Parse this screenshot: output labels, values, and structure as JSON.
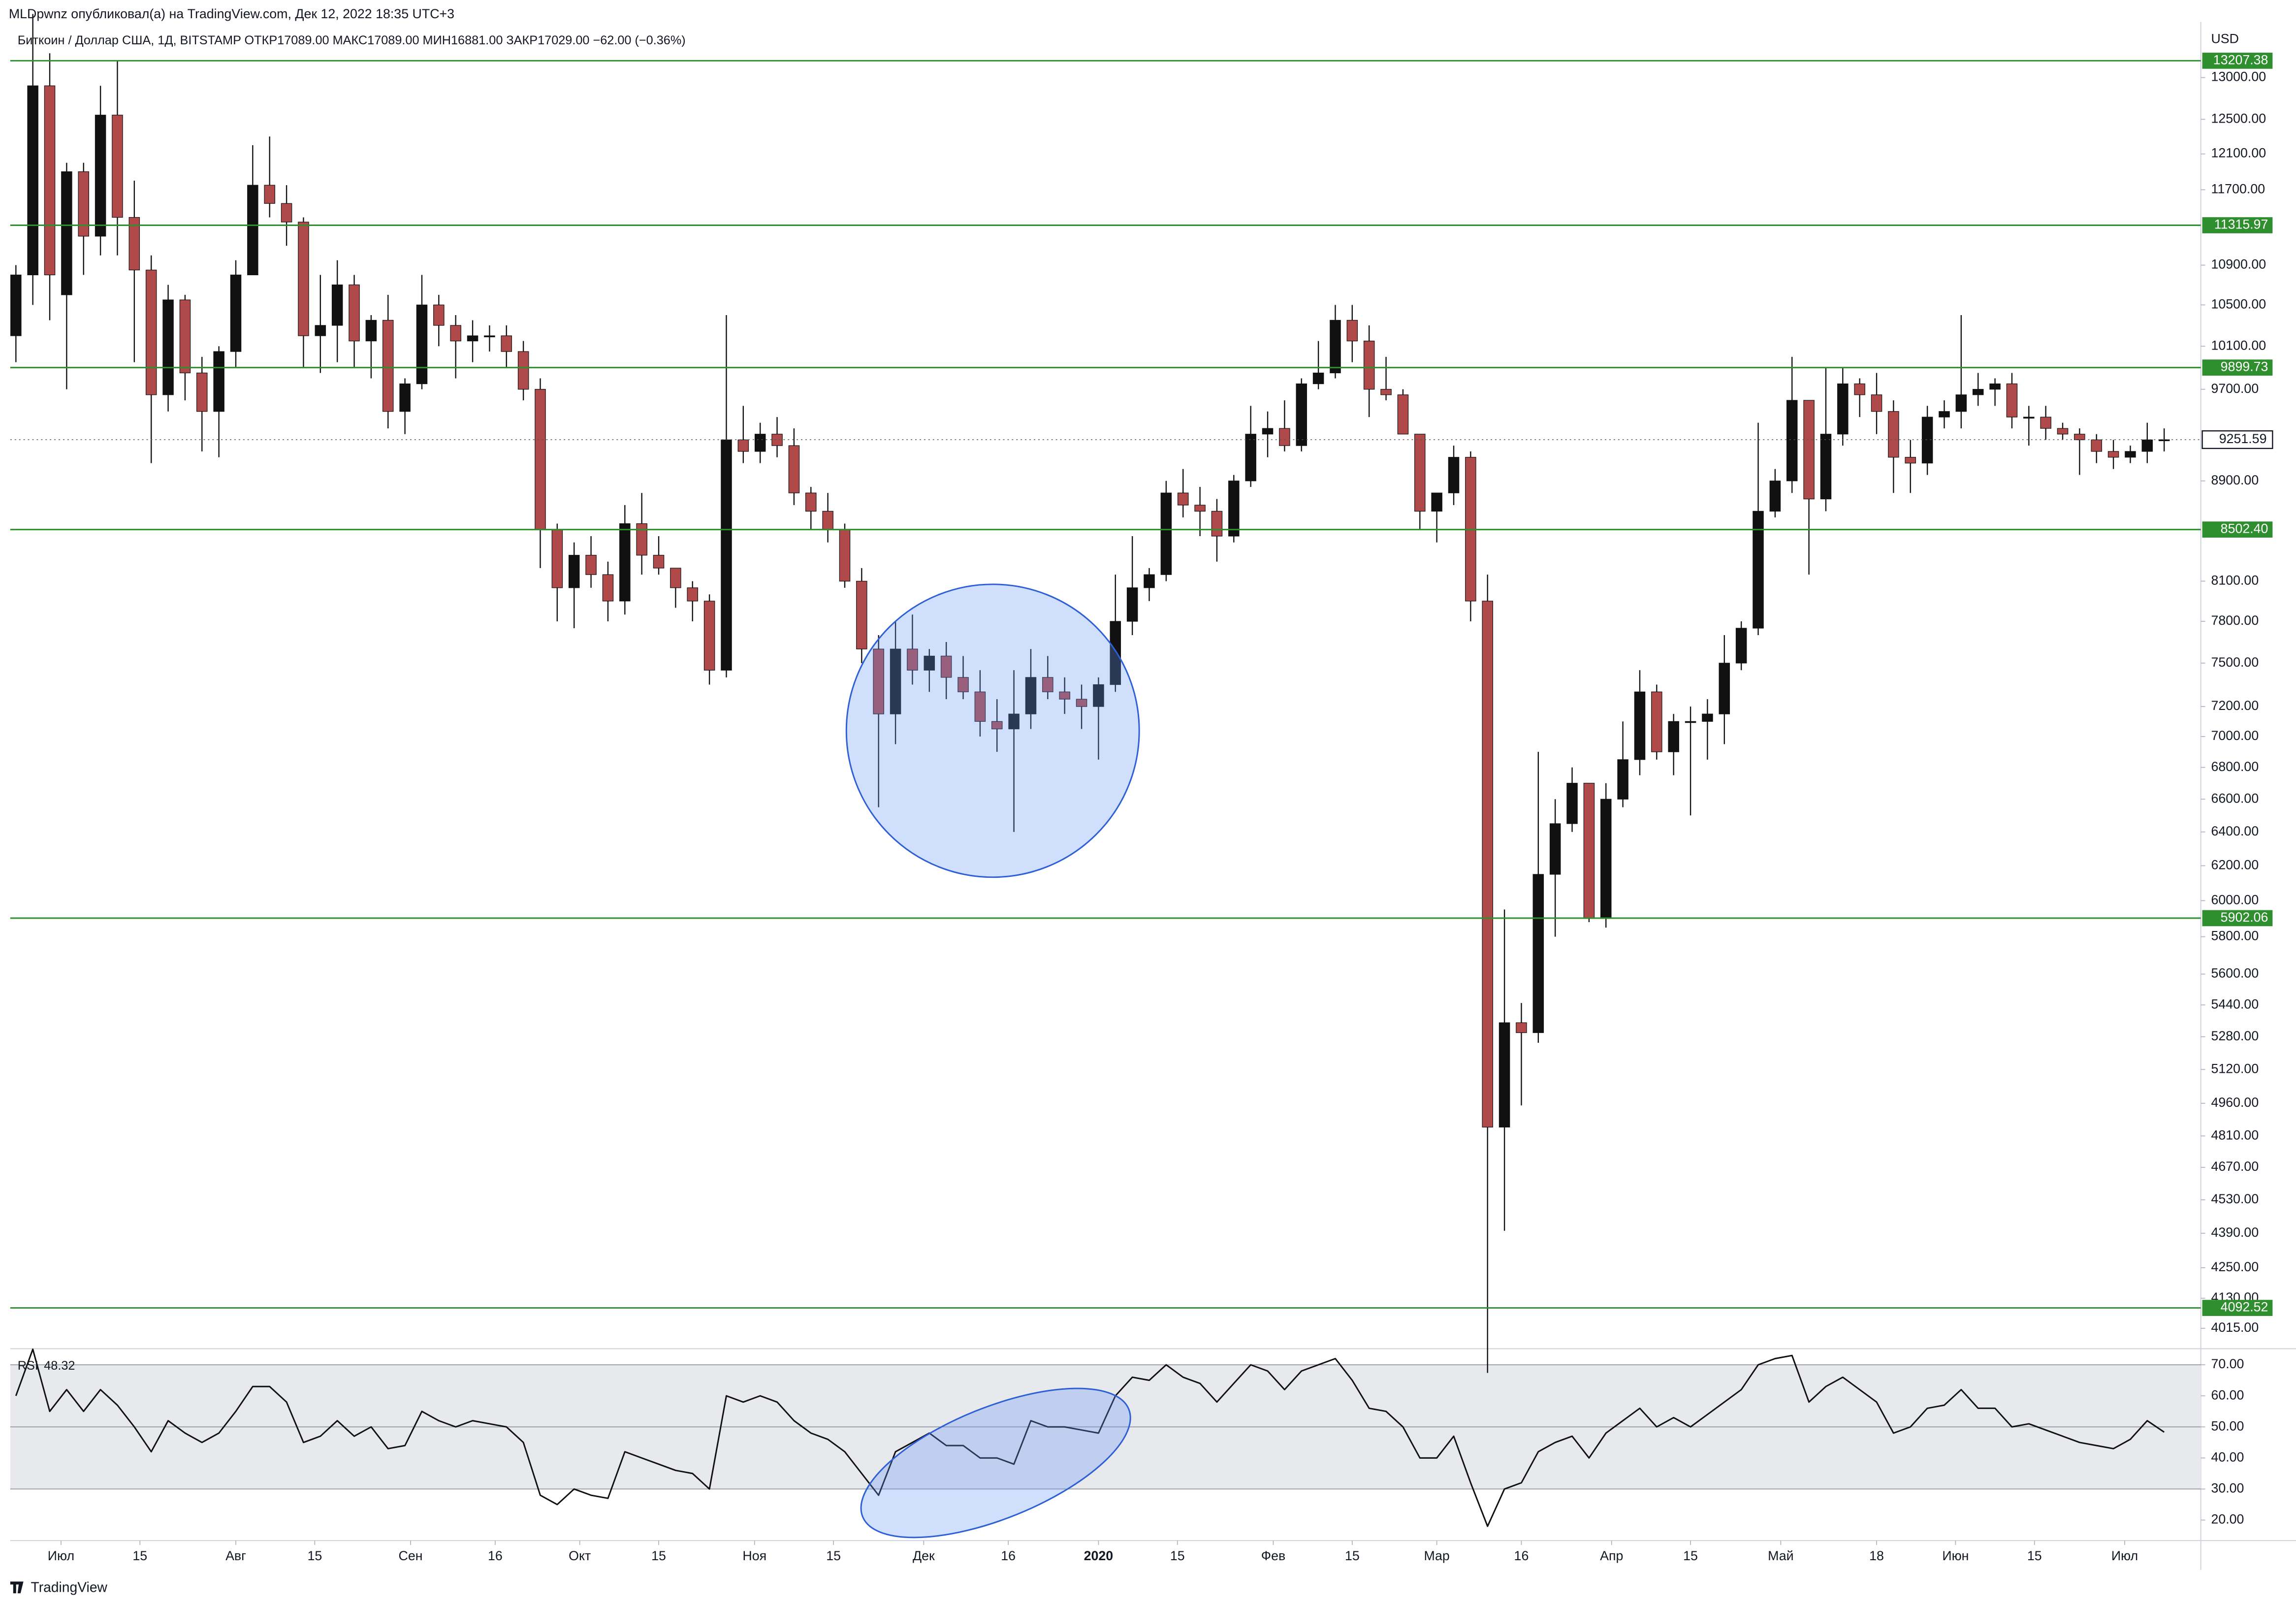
{
  "header": {
    "published": "MLDpwnz опубликовал(а) на TradingView.com, Дек 12, 2022 18:35 UTC+3",
    "symbol": "Биткоин / Доллар США, 1Д, BITSTAMP  ОТКР17089.00  МАКС17089.00  МИН16881.00  ЗАКР17029.00  −62.00 (−0.36%)"
  },
  "footer": {
    "brand": "TradingView"
  },
  "chart_data": [
    {
      "type": "candlestick",
      "y_unit": "USD",
      "log_scale": true,
      "up_color": "#111111",
      "down_color": "#b04a4a",
      "xlim": [
        -9,
        379.5
      ],
      "ylim": [
        3944,
        13697
      ],
      "yticks": [
        {
          "value": 13000,
          "label": "13000.00"
        },
        {
          "value": 12500,
          "label": "12500.00"
        },
        {
          "value": 12100,
          "label": "12100.00"
        },
        {
          "value": 11700,
          "label": "11700.00"
        },
        {
          "value": 10900,
          "label": "10900.00"
        },
        {
          "value": 10500,
          "label": "10500.00"
        },
        {
          "value": 10100,
          "label": "10100.00"
        },
        {
          "value": 9700,
          "label": "9700.00"
        },
        {
          "value": 8900,
          "label": "8900.00"
        },
        {
          "value": 8100,
          "label": "8100.00"
        },
        {
          "value": 7800,
          "label": "7800.00"
        },
        {
          "value": 7500,
          "label": "7500.00"
        },
        {
          "value": 7200,
          "label": "7200.00"
        },
        {
          "value": 7000,
          "label": "7000.00"
        },
        {
          "value": 6800,
          "label": "6800.00"
        },
        {
          "value": 6600,
          "label": "6600.00"
        },
        {
          "value": 6400,
          "label": "6400.00"
        },
        {
          "value": 6200,
          "label": "6200.00"
        },
        {
          "value": 6000,
          "label": "6000.00"
        },
        {
          "value": 5800,
          "label": "5800.00"
        },
        {
          "value": 5600,
          "label": "5600.00"
        },
        {
          "value": 5440,
          "label": "5440.00"
        },
        {
          "value": 5280,
          "label": "5280.00"
        },
        {
          "value": 5120,
          "label": "5120.00"
        },
        {
          "value": 4960,
          "label": "4960.00"
        },
        {
          "value": 4810,
          "label": "4810.00"
        },
        {
          "value": 4670,
          "label": "4670.00"
        },
        {
          "value": 4530,
          "label": "4530.00"
        },
        {
          "value": 4390,
          "label": "4390.00"
        },
        {
          "value": 4250,
          "label": "4250.00"
        },
        {
          "value": 4130,
          "label": "4130.00"
        },
        {
          "value": 4015,
          "label": "4015.00"
        }
      ],
      "hlines": {
        "color": "#2f8f2f",
        "values": [
          13207.38,
          11315.97,
          9899.73,
          {
            "value": 8502.4,
            "label": "8502.40"
          },
          5902.06,
          4092.52
        ]
      },
      "last_price": 9251.59,
      "x": [
        -8,
        -5,
        -2,
        1,
        4,
        7,
        10,
        13,
        16,
        19,
        22,
        25,
        28,
        31,
        34,
        37,
        40,
        43,
        46,
        49,
        52,
        55,
        58,
        61,
        64,
        67,
        70,
        73,
        76,
        79,
        82,
        85,
        88,
        91,
        94,
        97,
        100,
        103,
        106,
        109,
        112,
        115,
        118,
        121,
        124,
        127,
        130,
        133,
        136,
        139,
        142,
        145,
        148,
        151,
        154,
        157,
        160,
        163,
        166,
        169,
        172,
        175,
        178,
        181,
        184,
        187,
        190,
        193,
        196,
        199,
        202,
        205,
        208,
        211,
        214,
        217,
        220,
        223,
        226,
        229,
        232,
        235,
        238,
        241,
        244,
        247,
        250,
        253,
        256,
        259,
        262,
        265,
        268,
        271,
        274,
        277,
        280,
        283,
        286,
        289,
        292,
        295,
        298,
        301,
        304,
        307,
        310,
        313,
        316,
        319,
        322,
        325,
        328,
        331,
        334,
        337,
        340,
        343,
        346,
        349,
        352,
        355,
        358,
        361,
        364,
        367,
        370,
        373
      ],
      "open": [
        10200,
        10800,
        12900,
        10600,
        11900,
        11200,
        12550,
        11400,
        10850,
        9650,
        10550,
        9850,
        9500,
        10050,
        10800,
        11750,
        11550,
        11350,
        10200,
        10300,
        10700,
        10150,
        10350,
        9500,
        9750,
        10500,
        10300,
        10150,
        10200,
        10200,
        10050,
        9700,
        8500,
        8050,
        8300,
        8150,
        7950,
        8550,
        8300,
        8200,
        8050,
        7950,
        7450,
        9250,
        9150,
        9300,
        9200,
        8800,
        8650,
        8500,
        8100,
        7600,
        7150,
        7600,
        7450,
        7550,
        7400,
        7300,
        7100,
        7050,
        7150,
        7400,
        7300,
        7250,
        7200,
        7350,
        7800,
        8050,
        8150,
        8800,
        8700,
        8650,
        8450,
        8900,
        9300,
        9350,
        9200,
        9750,
        9850,
        10350,
        10150,
        9700,
        9650,
        9300,
        8650,
        8800,
        9100,
        7950,
        4850,
        5350,
        5300,
        6150,
        6450,
        6700,
        5900,
        6600,
        6850,
        7300,
        6900,
        7100,
        7100,
        7150,
        7500,
        7750,
        8650,
        8900,
        9600,
        8750,
        9300,
        9750,
        9650,
        9500,
        9100,
        9050,
        9450,
        9500,
        9650,
        9700,
        9750,
        9450,
        9450,
        9350,
        9300,
        9250,
        9150,
        9100,
        9150,
        9250
      ],
      "high": [
        10900,
        13800,
        13300,
        12000,
        12000,
        12900,
        13200,
        11800,
        11000,
        10700,
        10600,
        10000,
        10100,
        10950,
        12200,
        12300,
        11750,
        11400,
        10800,
        10950,
        10800,
        10400,
        10600,
        9800,
        10800,
        10600,
        10400,
        10350,
        10300,
        10300,
        10150,
        9800,
        8550,
        8400,
        8450,
        8250,
        8700,
        8800,
        8450,
        8200,
        8100,
        8000,
        10400,
        9550,
        9400,
        9450,
        9350,
        8850,
        8800,
        8550,
        8200,
        7700,
        7800,
        7850,
        7600,
        7650,
        7550,
        7450,
        7250,
        7450,
        7600,
        7550,
        7400,
        7350,
        7400,
        8150,
        8450,
        8200,
        8900,
        9000,
        8850,
        8750,
        8950,
        9550,
        9500,
        9600,
        9800,
        10150,
        10500,
        10500,
        10300,
        10000,
        9700,
        9300,
        8800,
        9200,
        9150,
        8150,
        5950,
        5450,
        6900,
        6600,
        6800,
        6700,
        6700,
        7100,
        7450,
        7350,
        7150,
        7200,
        7250,
        7700,
        7800,
        9400,
        9000,
        10000,
        9600,
        9900,
        9900,
        9800,
        9850,
        9600,
        9250,
        9550,
        9600,
        10400,
        9850,
        9800,
        9850,
        9550,
        9550,
        9400,
        9350,
        9300,
        9250,
        9200,
        9400,
        9350
      ],
      "low": [
        9950,
        10500,
        10350,
        9700,
        10800,
        11000,
        11000,
        9950,
        9050,
        9500,
        9600,
        9150,
        9100,
        9900,
        10800,
        11400,
        11100,
        9900,
        9850,
        9950,
        9900,
        9800,
        9350,
        9300,
        9700,
        10100,
        9800,
        9950,
        10050,
        9900,
        9600,
        8200,
        7800,
        7750,
        8050,
        7800,
        7850,
        8150,
        8150,
        7900,
        7800,
        7350,
        7400,
        9050,
        9050,
        9100,
        8700,
        8500,
        8400,
        8050,
        7500,
        6550,
        6950,
        7350,
        7300,
        7250,
        7250,
        7000,
        6900,
        6400,
        7050,
        7250,
        7150,
        7050,
        6850,
        7300,
        7700,
        7950,
        8100,
        8600,
        8450,
        8250,
        8400,
        8850,
        9100,
        9150,
        9150,
        9700,
        9800,
        9950,
        9450,
        9600,
        9300,
        8500,
        8400,
        8700,
        7800,
        3850,
        4400,
        4950,
        5250,
        5800,
        6400,
        5880,
        5850,
        6550,
        6750,
        6850,
        6750,
        6500,
        6850,
        6950,
        7450,
        7700,
        8600,
        8800,
        8150,
        8650,
        9200,
        9450,
        9300,
        8800,
        8800,
        8950,
        9350,
        9350,
        9550,
        9550,
        9350,
        9200,
        9250,
        9250,
        8950,
        9050,
        9000,
        9050,
        9050,
        9150
      ],
      "close": [
        10800,
        12900,
        10800,
        11900,
        11200,
        12550,
        11400,
        10850,
        9650,
        10550,
        9850,
        9500,
        10050,
        10800,
        11750,
        11550,
        11350,
        10200,
        10300,
        10700,
        10150,
        10350,
        9500,
        9750,
        10500,
        10300,
        10150,
        10200,
        10200,
        10050,
        9700,
        8500,
        8050,
        8300,
        8150,
        7950,
        8550,
        8300,
        8200,
        8050,
        7950,
        7450,
        9250,
        9150,
        9300,
        9200,
        8800,
        8650,
        8500,
        8100,
        7600,
        7150,
        7600,
        7450,
        7550,
        7400,
        7300,
        7100,
        7050,
        7150,
        7400,
        7300,
        7250,
        7200,
        7350,
        7800,
        8050,
        8150,
        8800,
        8700,
        8650,
        8450,
        8900,
        9300,
        9350,
        9200,
        9750,
        9850,
        10350,
        10150,
        9700,
        9650,
        9300,
        8650,
        8800,
        9100,
        7950,
        4850,
        5350,
        5300,
        6150,
        6450,
        6700,
        5900,
        6600,
        6850,
        7300,
        6900,
        7100,
        7100,
        7150,
        7500,
        7750,
        8650,
        8900,
        9600,
        8750,
        9300,
        9750,
        9650,
        9500,
        9100,
        9050,
        9450,
        9500,
        9650,
        9700,
        9750,
        9450,
        9450,
        9350,
        9300,
        9250,
        9150,
        9100,
        9150,
        9250,
        9251.59
      ]
    },
    {
      "type": "line",
      "name": "RSI",
      "color": "#111111",
      "last_value": 48.32,
      "band_color": "#e8e9ec",
      "xlim": [
        -9,
        379.5
      ],
      "ylim": [
        13.4,
        74.7
      ],
      "levels": [
        30,
        50,
        70
      ],
      "yticks": [
        {
          "value": 70,
          "label": "70.00"
        },
        {
          "value": 60,
          "label": "60.00"
        },
        {
          "value": 50,
          "label": "50.00"
        },
        {
          "value": 40,
          "label": "40.00"
        },
        {
          "value": 30,
          "label": "30.00"
        },
        {
          "value": 20,
          "label": "20.00"
        }
      ],
      "xticks": [
        {
          "value": 0,
          "label": "Июл"
        },
        {
          "value": 14,
          "label": "15"
        },
        {
          "value": 31,
          "label": "Авг"
        },
        {
          "value": 45,
          "label": "15"
        },
        {
          "value": 62,
          "label": "Сен"
        },
        {
          "value": 77,
          "label": "16"
        },
        {
          "value": 92,
          "label": "Окт"
        },
        {
          "value": 106,
          "label": "15"
        },
        {
          "value": 123,
          "label": "Ноя"
        },
        {
          "value": 137,
          "label": "15"
        },
        {
          "value": 153,
          "label": "Дек"
        },
        {
          "value": 168,
          "label": "16"
        },
        {
          "value": 184,
          "label": "2020"
        },
        {
          "value": 198,
          "label": "15"
        },
        {
          "value": 215,
          "label": "Фев"
        },
        {
          "value": 229,
          "label": "15"
        },
        {
          "value": 244,
          "label": "Мар"
        },
        {
          "value": 259,
          "label": "16"
        },
        {
          "value": 275,
          "label": "Апр"
        },
        {
          "value": 289,
          "label": "15"
        },
        {
          "value": 305,
          "label": "Май"
        },
        {
          "value": 322,
          "label": "18"
        },
        {
          "value": 336,
          "label": "Июн"
        },
        {
          "value": 350,
          "label": "15"
        },
        {
          "value": 366,
          "label": "Июл"
        }
      ],
      "x": [
        -8,
        -5,
        -2,
        1,
        4,
        7,
        10,
        13,
        16,
        19,
        22,
        25,
        28,
        31,
        34,
        37,
        40,
        43,
        46,
        49,
        52,
        55,
        58,
        61,
        64,
        67,
        70,
        73,
        76,
        79,
        82,
        85,
        88,
        91,
        94,
        97,
        100,
        103,
        106,
        109,
        112,
        115,
        118,
        121,
        124,
        127,
        130,
        133,
        136,
        139,
        142,
        145,
        148,
        151,
        154,
        157,
        160,
        163,
        166,
        169,
        172,
        175,
        178,
        181,
        184,
        187,
        190,
        193,
        196,
        199,
        202,
        205,
        208,
        211,
        214,
        217,
        220,
        223,
        226,
        229,
        232,
        235,
        238,
        241,
        244,
        247,
        250,
        253,
        256,
        259,
        262,
        265,
        268,
        271,
        274,
        277,
        280,
        283,
        286,
        289,
        292,
        295,
        298,
        301,
        304,
        307,
        310,
        313,
        316,
        319,
        322,
        325,
        328,
        331,
        334,
        337,
        340,
        343,
        346,
        349,
        352,
        355,
        358,
        361,
        364,
        367,
        370,
        373
      ],
      "values": [
        60,
        75,
        55,
        62,
        55,
        62,
        57,
        50,
        42,
        52,
        48,
        45,
        48,
        55,
        63,
        63,
        58,
        45,
        47,
        52,
        47,
        50,
        43,
        44,
        55,
        52,
        50,
        52,
        51,
        50,
        45,
        28,
        25,
        30,
        28,
        27,
        42,
        40,
        38,
        36,
        35,
        30,
        60,
        58,
        60,
        58,
        52,
        48,
        46,
        42,
        35,
        28,
        42,
        45,
        48,
        44,
        44,
        40,
        40,
        38,
        52,
        50,
        50,
        49,
        48,
        60,
        66,
        65,
        70,
        66,
        64,
        58,
        64,
        70,
        68,
        62,
        68,
        70,
        72,
        65,
        56,
        55,
        50,
        40,
        40,
        47,
        32,
        18,
        30,
        32,
        42,
        45,
        47,
        40,
        48,
        52,
        56,
        50,
        53,
        50,
        54,
        58,
        62,
        70,
        72,
        73,
        58,
        63,
        66,
        62,
        58,
        48,
        50,
        56,
        57,
        62,
        56,
        56,
        50,
        51,
        49,
        47,
        45,
        44,
        43,
        46,
        52,
        48.32
      ]
    }
  ]
}
